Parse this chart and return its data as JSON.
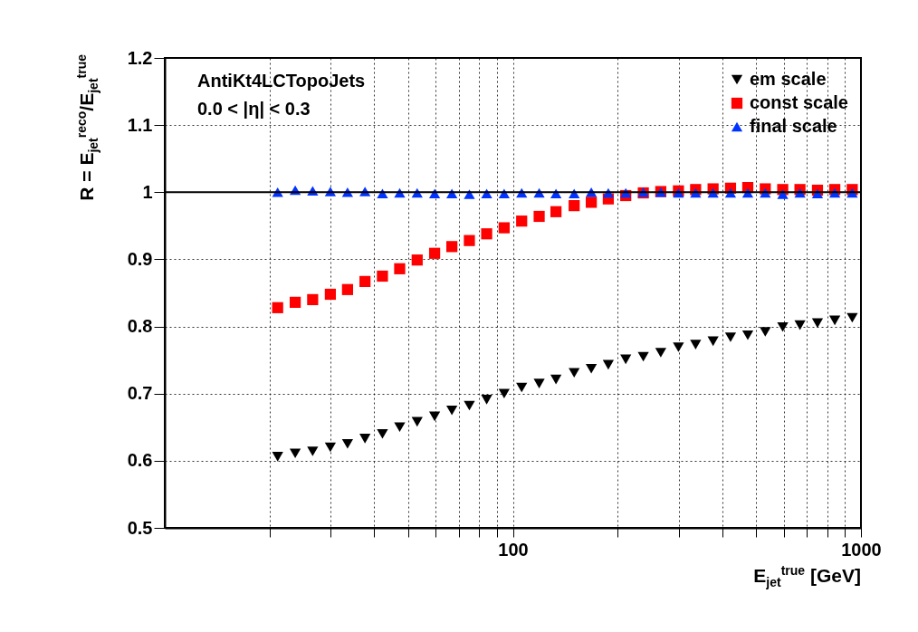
{
  "chart_data": {
    "type": "scatter",
    "xlabel": "E$_{jet}$$^{true}$ [GeV]",
    "ylabel": "R = E$_{jet}$$^{reco}$/E$_{jet}$$^{true}$",
    "annotations": [
      "AntiKt4LCTopoJets",
      "0.0 < |η| < 0.3"
    ],
    "log": "x",
    "grid": true,
    "legend": "top right",
    "xlim": [
      10,
      1000
    ],
    "ylim": [
      0.5,
      1.2
    ],
    "xticks": [
      {
        "value": 20,
        "label": null
      },
      {
        "value": 30,
        "label": null
      },
      {
        "value": 40,
        "label": null
      },
      {
        "value": 50,
        "label": null
      },
      {
        "value": 60,
        "label": null
      },
      {
        "value": 70,
        "label": null
      },
      {
        "value": 80,
        "label": null
      },
      {
        "value": 90,
        "label": null
      },
      100,
      {
        "value": 200,
        "label": null
      },
      {
        "value": 300,
        "label": null
      },
      {
        "value": 400,
        "label": null
      },
      {
        "value": 500,
        "label": null
      },
      {
        "value": 600,
        "label": null
      },
      {
        "value": 700,
        "label": null
      },
      {
        "value": 800,
        "label": null
      },
      {
        "value": 900,
        "label": null
      },
      1000
    ],
    "yticks": [
      0.5,
      0.6,
      0.7,
      0.8,
      0.9,
      1,
      1.1,
      1.2
    ],
    "x": [
      21.1,
      23.7,
      26.6,
      29.9,
      33.5,
      37.6,
      42.2,
      47.3,
      53.1,
      59.6,
      66.8,
      75.0,
      84.1,
      94.4,
      106,
      119,
      133,
      150,
      168,
      188,
      211,
      237,
      266,
      299,
      335,
      376,
      422,
      473,
      531,
      596,
      668,
      750,
      841,
      944
    ],
    "ref_lines": [
      {
        "axis": "y",
        "value": 1,
        "color": "#000000",
        "line_style": "solid"
      }
    ],
    "series": [
      {
        "name": "em scale",
        "color": "#000000",
        "marker": "triangle-down",
        "values": [
          0.606,
          0.611,
          0.614,
          0.62,
          0.625,
          0.633,
          0.64,
          0.65,
          0.658,
          0.666,
          0.675,
          0.682,
          0.691,
          0.7,
          0.709,
          0.715,
          0.721,
          0.731,
          0.737,
          0.743,
          0.751,
          0.755,
          0.761,
          0.769,
          0.773,
          0.778,
          0.784,
          0.787,
          0.792,
          0.799,
          0.802,
          0.805,
          0.809,
          0.813
        ]
      },
      {
        "name": "const scale",
        "color": "#ff0000",
        "marker": "square",
        "values": [
          0.828,
          0.836,
          0.84,
          0.848,
          0.855,
          0.867,
          0.875,
          0.886,
          0.899,
          0.909,
          0.919,
          0.928,
          0.938,
          0.947,
          0.957,
          0.964,
          0.971,
          0.98,
          0.985,
          0.99,
          0.995,
          0.999,
          1.001,
          1.002,
          1.004,
          1.005,
          1.006,
          1.007,
          1.005,
          1.004,
          1.004,
          1.003,
          1.004,
          1.004
        ]
      },
      {
        "name": "final scale",
        "color": "#0033ff",
        "marker": "triangle-up",
        "values": [
          1.0,
          1.003,
          1.002,
          1.001,
          1.0,
          1.001,
          0.998,
          0.999,
          0.999,
          0.998,
          0.998,
          0.997,
          0.998,
          0.998,
          0.999,
          0.999,
          0.998,
          0.998,
          1.0,
          0.999,
          0.999,
          1.0,
          1.0,
          0.999,
          0.999,
          0.999,
          0.999,
          0.999,
          0.999,
          0.997,
          0.999,
          0.998,
          0.999,
          0.999
        ]
      }
    ]
  }
}
